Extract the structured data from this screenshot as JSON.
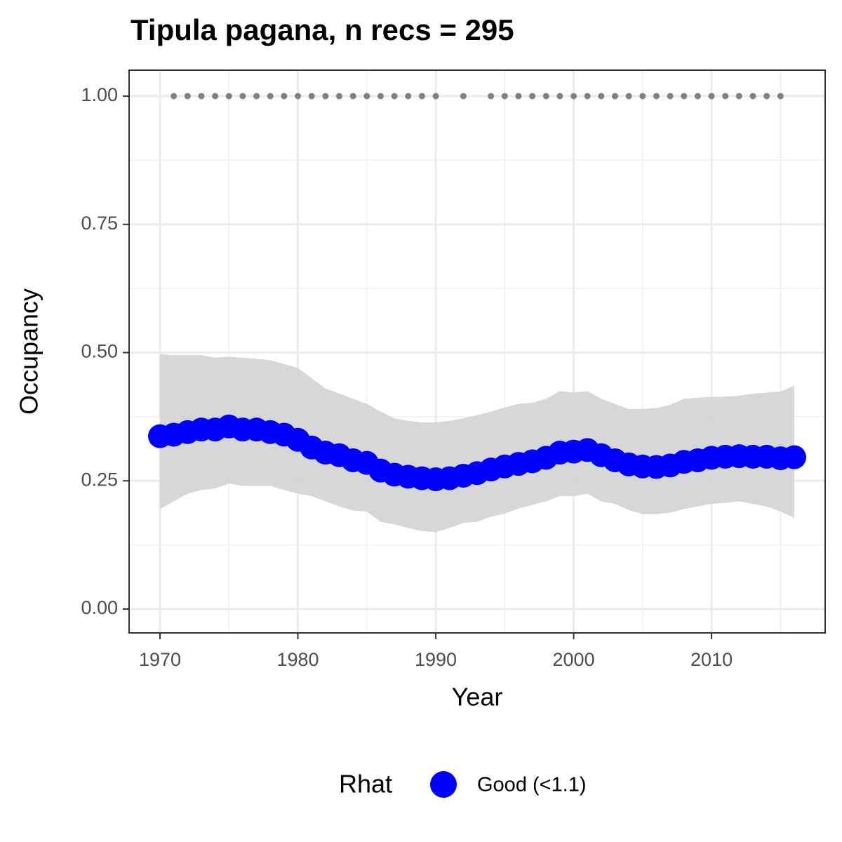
{
  "chart_data": {
    "type": "line",
    "title": "Tipula pagana, n recs = 295",
    "x_label": "Year",
    "y_label": "Occupancy",
    "legend_title": "Rhat",
    "legend_position": "bottom",
    "grid": true,
    "x": [
      1970,
      1971,
      1972,
      1973,
      1974,
      1975,
      1976,
      1977,
      1978,
      1979,
      1980,
      1981,
      1982,
      1983,
      1984,
      1985,
      1986,
      1987,
      1988,
      1989,
      1990,
      1991,
      1992,
      1993,
      1994,
      1995,
      1996,
      1997,
      1998,
      1999,
      2000,
      2001,
      2002,
      2003,
      2004,
      2005,
      2006,
      2007,
      2008,
      2009,
      2010,
      2011,
      2012,
      2013,
      2014,
      2015,
      2016
    ],
    "series": [
      {
        "name": "Good (<1.1)",
        "color": "#0000ff",
        "values": [
          0.337,
          0.34,
          0.345,
          0.35,
          0.35,
          0.356,
          0.35,
          0.35,
          0.345,
          0.34,
          0.33,
          0.315,
          0.305,
          0.3,
          0.29,
          0.285,
          0.27,
          0.262,
          0.258,
          0.255,
          0.253,
          0.255,
          0.26,
          0.265,
          0.272,
          0.278,
          0.283,
          0.288,
          0.295,
          0.305,
          0.307,
          0.31,
          0.3,
          0.29,
          0.282,
          0.278,
          0.277,
          0.28,
          0.287,
          0.29,
          0.295,
          0.297,
          0.298,
          0.297,
          0.297,
          0.294,
          0.296
        ]
      }
    ],
    "band": {
      "color": "#d3d3d3",
      "upper": [
        0.497,
        0.495,
        0.495,
        0.495,
        0.49,
        0.492,
        0.49,
        0.488,
        0.485,
        0.478,
        0.47,
        0.45,
        0.43,
        0.42,
        0.41,
        0.4,
        0.385,
        0.372,
        0.367,
        0.364,
        0.364,
        0.367,
        0.372,
        0.378,
        0.385,
        0.393,
        0.4,
        0.402,
        0.41,
        0.425,
        0.422,
        0.425,
        0.41,
        0.4,
        0.39,
        0.39,
        0.392,
        0.398,
        0.41,
        0.412,
        0.414,
        0.414,
        0.416,
        0.42,
        0.422,
        0.424,
        0.435
      ],
      "lower": [
        0.195,
        0.21,
        0.225,
        0.232,
        0.235,
        0.245,
        0.24,
        0.24,
        0.24,
        0.232,
        0.225,
        0.22,
        0.21,
        0.2,
        0.192,
        0.19,
        0.17,
        0.165,
        0.158,
        0.152,
        0.15,
        0.158,
        0.168,
        0.17,
        0.18,
        0.186,
        0.196,
        0.203,
        0.21,
        0.22,
        0.22,
        0.225,
        0.21,
        0.205,
        0.193,
        0.185,
        0.185,
        0.188,
        0.195,
        0.2,
        0.205,
        0.207,
        0.21,
        0.205,
        0.2,
        0.19,
        0.178
      ]
    },
    "records": {
      "color": "#808080",
      "x": [
        1971,
        1972,
        1973,
        1974,
        1975,
        1976,
        1977,
        1978,
        1979,
        1980,
        1981,
        1982,
        1983,
        1984,
        1985,
        1986,
        1987,
        1988,
        1989,
        1990,
        1992,
        1994,
        1995,
        1996,
        1997,
        1998,
        1999,
        2000,
        2001,
        2002,
        2003,
        2004,
        2005,
        2006,
        2007,
        2008,
        2009,
        2010,
        2011,
        2012,
        2013,
        2014,
        2015
      ],
      "values": [
        1,
        1,
        1,
        1,
        1,
        1,
        1,
        1,
        1,
        1,
        1,
        1,
        1,
        1,
        1,
        1,
        1,
        1,
        1,
        1,
        1,
        1,
        1,
        1,
        1,
        1,
        1,
        1,
        1,
        1,
        1,
        1,
        1,
        1,
        1,
        1,
        1,
        1,
        1,
        1,
        1,
        1,
        1
      ]
    },
    "xlim": [
      1967.76,
      2018.24
    ],
    "ylim": [
      -0.0465,
      1.0506
    ],
    "xticks": [
      1970,
      1980,
      1990,
      2000,
      2010
    ],
    "yticks": [
      {
        "value": 0,
        "label": "0.00"
      },
      {
        "value": 0.25,
        "label": "0.25"
      },
      {
        "value": 0.5,
        "label": "0.50"
      },
      {
        "value": 0.75,
        "label": "0.75"
      },
      {
        "value": 1,
        "label": "1.00"
      }
    ],
    "x_minor_grid": [
      1975,
      1985,
      1995,
      2005,
      2015
    ],
    "y_minor_grid": [
      0.125,
      0.375,
      0.625,
      0.875
    ]
  }
}
